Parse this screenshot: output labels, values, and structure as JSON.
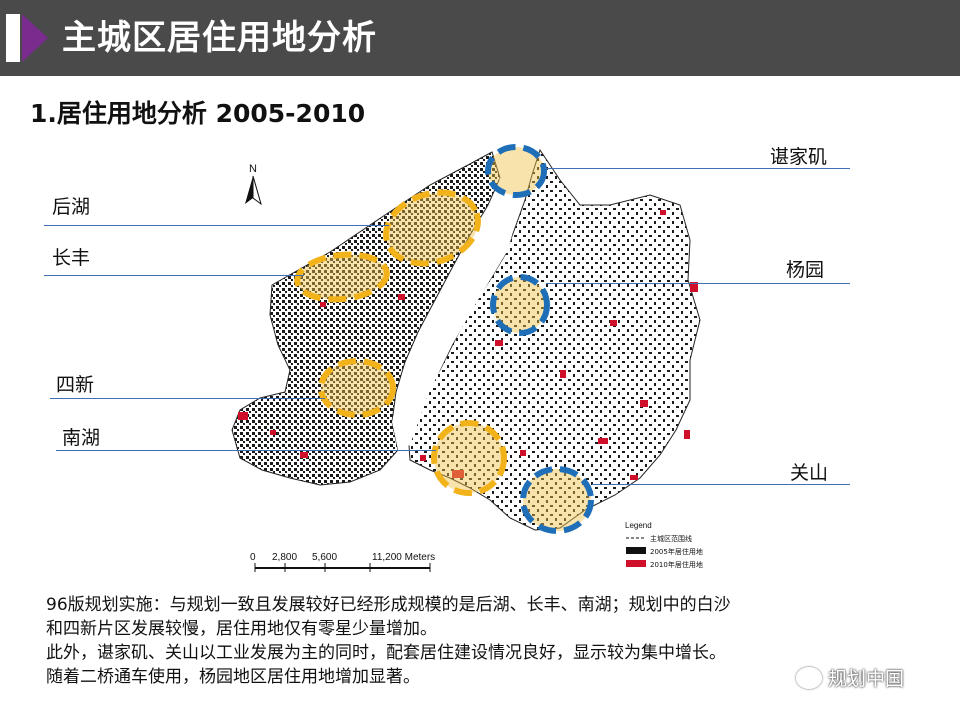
{
  "header": {
    "title": "主城区居住用地分析"
  },
  "section": {
    "title": "1.居住用地分析 2005-2010"
  },
  "map": {
    "north": "N",
    "scale": {
      "ticks": [
        "0",
        "2,800",
        "5,600",
        "11,200 Meters"
      ]
    },
    "legend": {
      "title": "Legend",
      "items": [
        {
          "label": "主城区范围线",
          "color": "#000000"
        },
        {
          "label": "2005年居住用地",
          "color": "#000000"
        },
        {
          "label": "2010年居住用地",
          "color": "#d0102a"
        }
      ]
    },
    "colors": {
      "ring_yellow": "#f2b21a",
      "ring_blue": "#1f6fb8",
      "new_residential": "#d0102a",
      "leader": "#3f6fb5"
    }
  },
  "areas": {
    "houhu": "后湖",
    "changfeng": "长丰",
    "sixin": "四新",
    "nanhu": "南湖",
    "chenjiaji": "谌家矶",
    "yangyuan": "杨园",
    "guanshan": "关山"
  },
  "body": {
    "line1": "96版规划实施：与规划一致且发展较好已经形成规模的是后湖、长丰、南湖；规划中的白沙",
    "line2": "和四新片区发展较慢，居住用地仅有零星少量增加。",
    "line3": "此外，谌家矶、关山以工业发展为主的同时，配套居住建设情况良好，显示较为集中增长。",
    "line4": "随着二桥通车使用，杨园地区居住用地增加显著。"
  },
  "watermark": "规划中国"
}
